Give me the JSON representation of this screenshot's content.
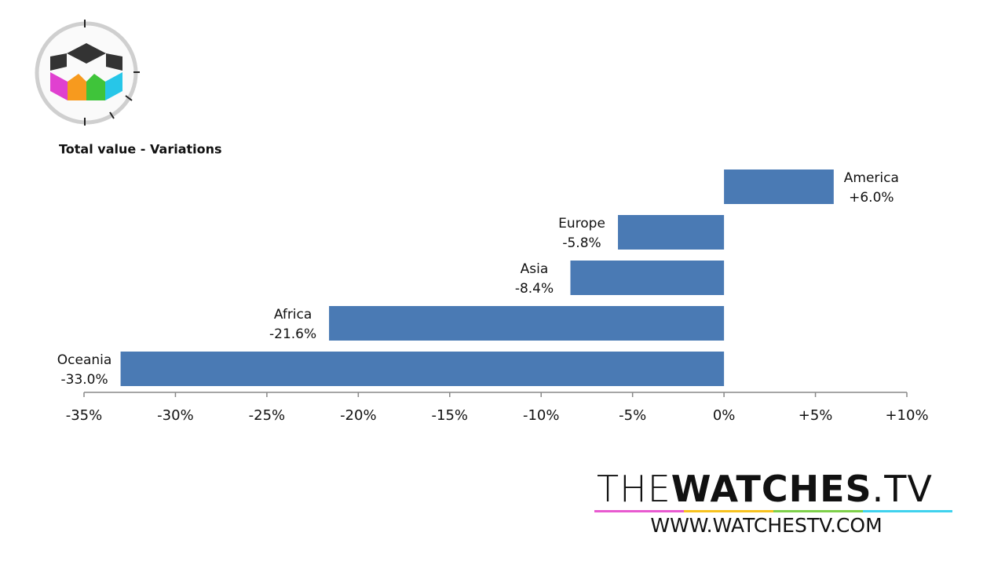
{
  "chart_data": {
    "type": "barh",
    "title": "Total value - Variations",
    "categories": [
      "America",
      "Europe",
      "Asia",
      "Africa",
      "Oceania"
    ],
    "values": [
      6.0,
      -5.8,
      -8.4,
      -21.6,
      -33.0
    ],
    "value_labels": [
      "+6.0%",
      "-5.8%",
      "-8.4%",
      "-21.6%",
      "-33.0%"
    ],
    "color": "#4a7ab4",
    "xlim": [
      -35,
      10
    ],
    "xticks": [
      {
        "value": -35,
        "label": "-35%"
      },
      {
        "value": -30,
        "label": "-30%"
      },
      {
        "value": -25,
        "label": "-25%"
      },
      {
        "value": -20,
        "label": "-20%"
      },
      {
        "value": -15,
        "label": "-15%"
      },
      {
        "value": -10,
        "label": "-10%"
      },
      {
        "value": -5,
        "label": "-5%"
      },
      {
        "value": 0,
        "label": "0%"
      },
      {
        "value": 5,
        "label": "+5%"
      },
      {
        "value": 10,
        "label": "+10%"
      }
    ],
    "grid": false
  },
  "brand": {
    "name_light": "THE",
    "name_bold": "WATCHES",
    "suffix": ".TV",
    "url": "WWW.WATCHESTV.COM"
  }
}
